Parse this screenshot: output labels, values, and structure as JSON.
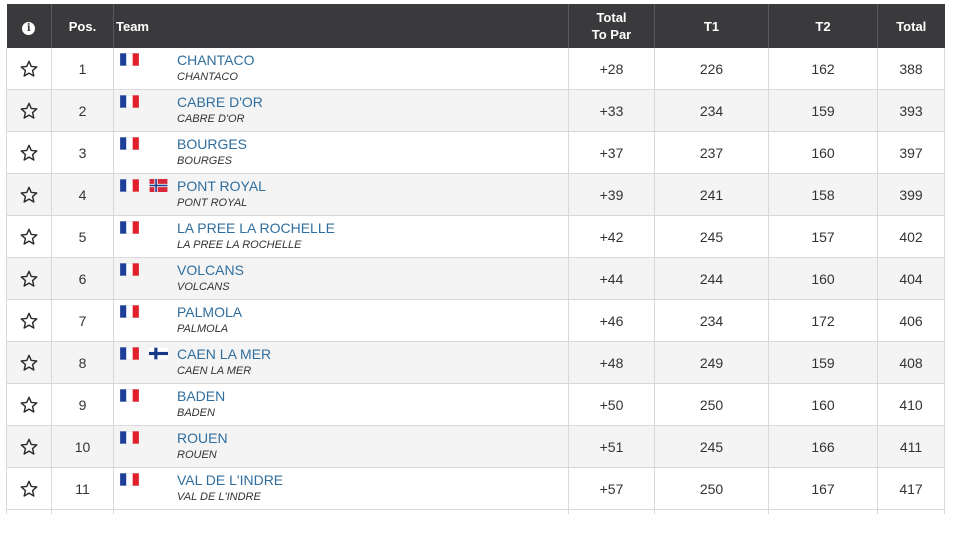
{
  "header": {
    "info_glyph": "i",
    "pos": "Pos.",
    "team": "Team",
    "total_to_par_line1": "Total",
    "total_to_par_line2": "To Par",
    "t1": "T1",
    "t2": "T2",
    "total": "Total"
  },
  "colors": {
    "header_bg": "#3a3a3d",
    "link": "#2f6e9e",
    "alt_row": "#f4f4f4",
    "border": "#d9d9d9"
  },
  "rows": [
    {
      "pos": "1",
      "flags": [
        "fr"
      ],
      "name": "CHANTACO",
      "sub": "CHANTACO",
      "to_par": "+28",
      "t1": "226",
      "t2": "162",
      "total": "388"
    },
    {
      "pos": "2",
      "flags": [
        "fr"
      ],
      "name": "CABRE D'OR",
      "sub": "CABRE D'OR",
      "to_par": "+33",
      "t1": "234",
      "t2": "159",
      "total": "393"
    },
    {
      "pos": "3",
      "flags": [
        "fr"
      ],
      "name": "BOURGES",
      "sub": "BOURGES",
      "to_par": "+37",
      "t1": "237",
      "t2": "160",
      "total": "397"
    },
    {
      "pos": "4",
      "flags": [
        "fr",
        "no"
      ],
      "name": "PONT ROYAL",
      "sub": "PONT ROYAL",
      "to_par": "+39",
      "t1": "241",
      "t2": "158",
      "total": "399"
    },
    {
      "pos": "5",
      "flags": [
        "fr"
      ],
      "name": "LA PREE LA ROCHELLE",
      "sub": "LA PREE LA ROCHELLE",
      "to_par": "+42",
      "t1": "245",
      "t2": "157",
      "total": "402"
    },
    {
      "pos": "6",
      "flags": [
        "fr"
      ],
      "name": "VOLCANS",
      "sub": "VOLCANS",
      "to_par": "+44",
      "t1": "244",
      "t2": "160",
      "total": "404"
    },
    {
      "pos": "7",
      "flags": [
        "fr"
      ],
      "name": "PALMOLA",
      "sub": "PALMOLA",
      "to_par": "+46",
      "t1": "234",
      "t2": "172",
      "total": "406"
    },
    {
      "pos": "8",
      "flags": [
        "fr",
        "fi"
      ],
      "name": "CAEN LA MER",
      "sub": "CAEN LA MER",
      "to_par": "+48",
      "t1": "249",
      "t2": "159",
      "total": "408"
    },
    {
      "pos": "9",
      "flags": [
        "fr"
      ],
      "name": "BADEN",
      "sub": "BADEN",
      "to_par": "+50",
      "t1": "250",
      "t2": "160",
      "total": "410"
    },
    {
      "pos": "10",
      "flags": [
        "fr"
      ],
      "name": "ROUEN",
      "sub": "ROUEN",
      "to_par": "+51",
      "t1": "245",
      "t2": "166",
      "total": "411"
    },
    {
      "pos": "11",
      "flags": [
        "fr"
      ],
      "name": "VAL DE L'INDRE",
      "sub": "VAL DE L'INDRE",
      "to_par": "+57",
      "t1": "250",
      "t2": "167",
      "total": "417"
    }
  ]
}
